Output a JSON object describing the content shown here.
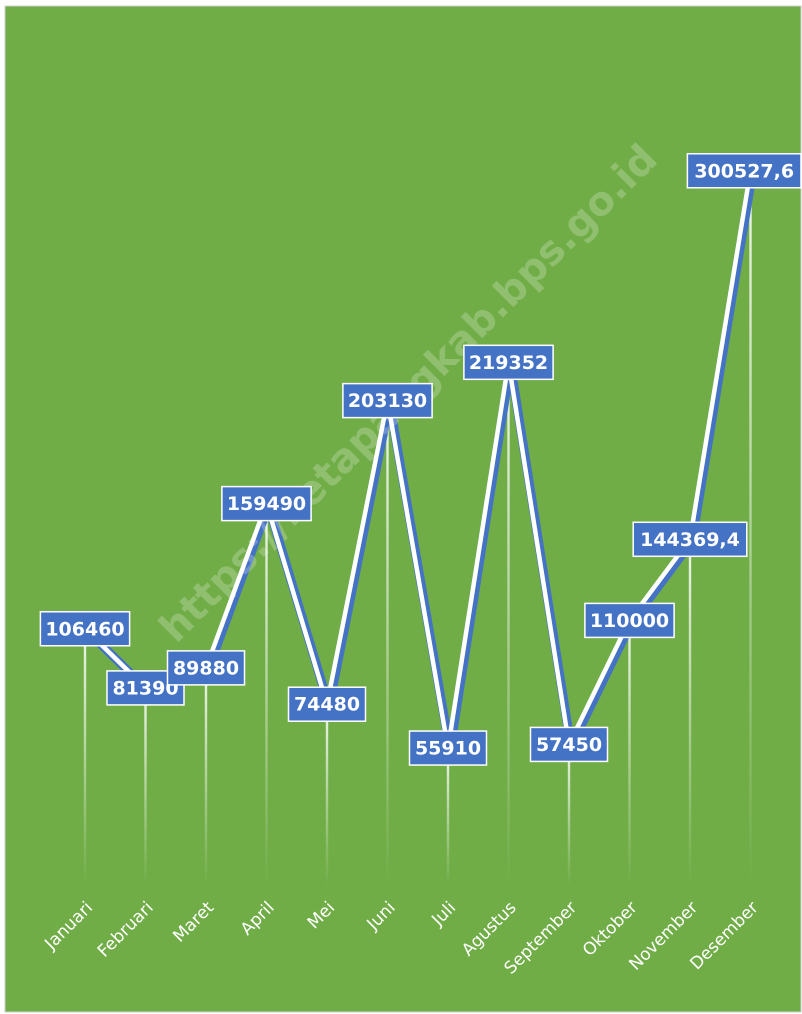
{
  "chart_data": {
    "type": "line",
    "categories": [
      "Januari",
      "Februari",
      "Maret",
      "April",
      "Mei",
      "Juni",
      "Juli",
      "Agustus",
      "September",
      "Oktober",
      "November",
      "Desember"
    ],
    "series": [
      {
        "color": "#4472c4",
        "values": [
          106460,
          81390,
          89880,
          159490,
          74480,
          203130,
          55910,
          219352,
          57450,
          110000,
          144369.4,
          300527.6
        ],
        "value_labels": [
          "106460",
          "81390",
          "89880",
          "159490",
          "74480",
          "203130",
          "55910",
          "219352",
          "57450",
          "110000",
          "144369,4",
          "300527,6"
        ]
      }
    ],
    "watermark": "https://ketapangkab.bps.go.id"
  }
}
